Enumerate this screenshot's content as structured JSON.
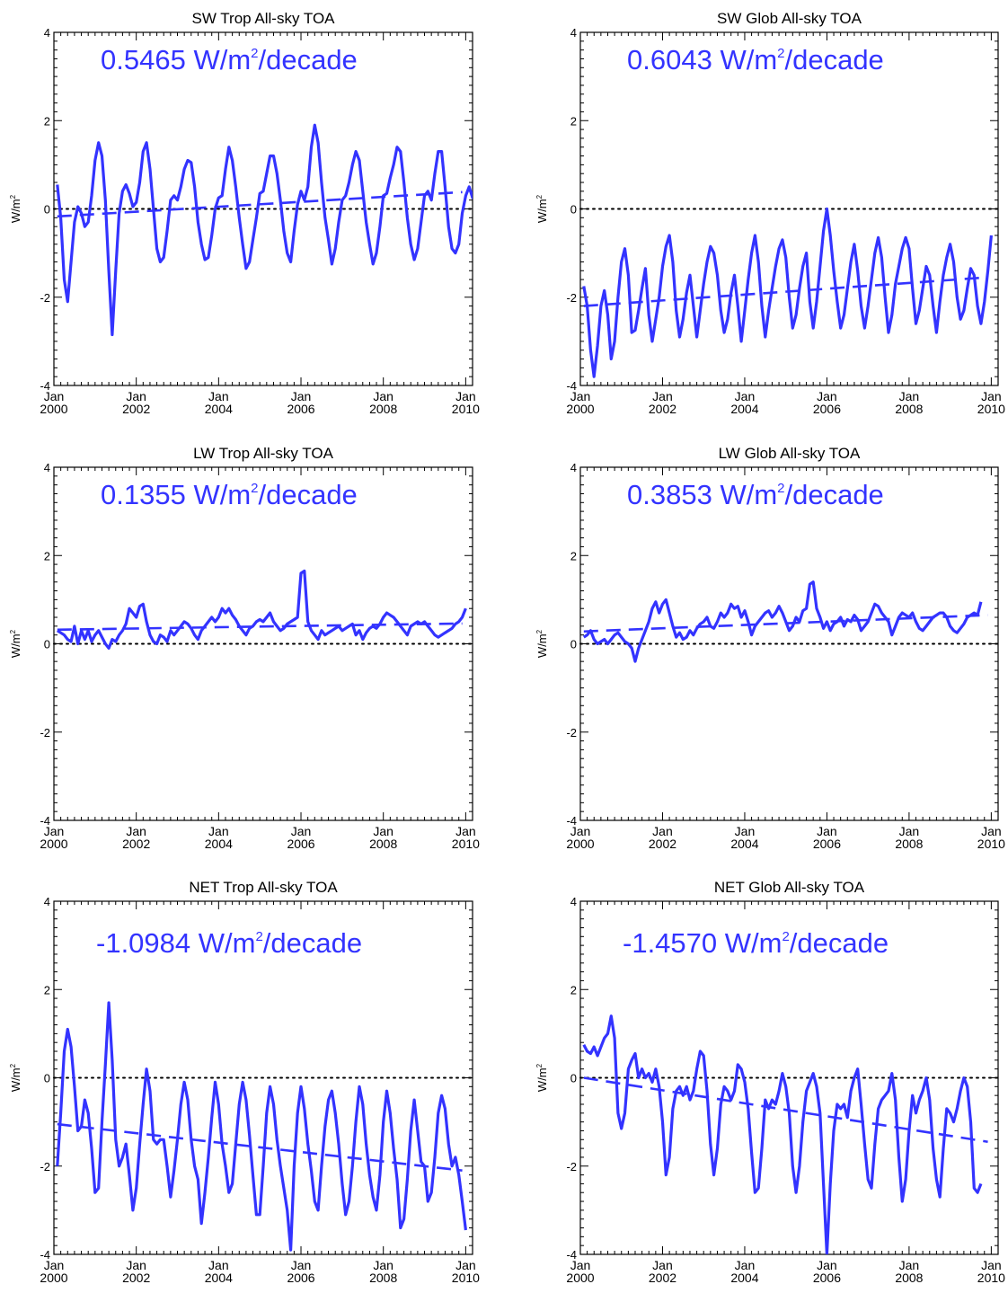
{
  "figure": {
    "line_color": "#3333ff",
    "unit_text": {
      "pre": "W/m",
      "sup": "2"
    },
    "trend_unit": {
      "pre": " W/m",
      "sup": "2",
      "post": "/decade"
    }
  },
  "chart_data": [
    {
      "type": "line",
      "title": "SW Trop All-sky TOA",
      "trend_value": "0.5465",
      "ylabel": "W/m2",
      "x_start": "2000-01",
      "x_step": "1 month",
      "ylim": [
        -4,
        4
      ],
      "yticks": [
        -4,
        -2,
        0,
        2,
        4
      ],
      "xlim": [
        "2000-01",
        "2010-03"
      ],
      "xticks": [
        {
          "line1": "Jan",
          "line2": "2000"
        },
        {
          "line1": "Jan",
          "line2": "2002"
        },
        {
          "line1": "Jan",
          "line2": "2004"
        },
        {
          "line1": "Jan",
          "line2": "2006"
        },
        {
          "line1": "Jan",
          "line2": "2008"
        },
        {
          "line1": "Jan",
          "line2": "2010"
        }
      ],
      "zero_line": "dotted",
      "series": [
        {
          "style": "solid",
          "values": [
            0.55,
            -0.2,
            -1.6,
            -2.1,
            -1.2,
            -0.3,
            0.05,
            -0.1,
            -0.4,
            -0.3,
            0.3,
            1.1,
            1.5,
            1.2,
            0.2,
            -1.4,
            -2.85,
            -1.4,
            -0.1,
            0.4,
            0.55,
            0.35,
            0.05,
            0.15,
            0.6,
            1.3,
            1.5,
            0.9,
            0.0,
            -0.9,
            -1.2,
            -1.1,
            -0.5,
            0.2,
            0.3,
            0.2,
            0.5,
            0.9,
            1.1,
            1.05,
            0.5,
            -0.3,
            -0.8,
            -1.15,
            -1.1,
            -0.6,
            0.0,
            0.25,
            0.3,
            0.9,
            1.4,
            1.1,
            0.5,
            -0.2,
            -0.8,
            -1.35,
            -1.2,
            -0.7,
            -0.2,
            0.35,
            0.4,
            0.8,
            1.2,
            1.2,
            0.8,
            0.2,
            -0.5,
            -1.0,
            -1.2,
            -0.5,
            0.1,
            0.4,
            0.2,
            0.5,
            1.4,
            1.9,
            1.5,
            0.6,
            -0.2,
            -0.7,
            -1.25,
            -0.9,
            -0.3,
            0.2,
            0.3,
            0.6,
            1.0,
            1.3,
            1.1,
            0.4,
            -0.3,
            -0.8,
            -1.25,
            -1.0,
            -0.4,
            0.3,
            0.35,
            0.7,
            1.0,
            1.4,
            1.3,
            0.6,
            -0.2,
            -0.8,
            -1.15,
            -0.9,
            -0.3,
            0.3,
            0.4,
            0.2,
            0.8,
            1.3,
            1.3,
            0.5,
            -0.4,
            -0.9,
            -1.0,
            -0.8,
            -0.1,
            0.3,
            0.5,
            0.25,
            0.7,
            1.35
          ]
        },
        {
          "style": "dashed",
          "values": [
            -0.17,
            0.38
          ]
        }
      ]
    },
    {
      "type": "line",
      "title": "SW Glob All-sky TOA",
      "trend_value": "0.6043",
      "ylabel": "W/m2",
      "x_start": "2000-01",
      "x_step": "1 month",
      "ylim": [
        -4,
        4
      ],
      "yticks": [
        -4,
        -2,
        0,
        2,
        4
      ],
      "xlim": [
        "2000-01",
        "2010-03"
      ],
      "xticks": [
        {
          "line1": "Jan",
          "line2": "2000"
        },
        {
          "line1": "Jan",
          "line2": "2002"
        },
        {
          "line1": "Jan",
          "line2": "2004"
        },
        {
          "line1": "Jan",
          "line2": "2006"
        },
        {
          "line1": "Jan",
          "line2": "2008"
        },
        {
          "line1": "Jan",
          "line2": "2010"
        }
      ],
      "zero_line": "dotted",
      "series": [
        {
          "style": "solid",
          "values": [
            -1.75,
            -2.2,
            -3.2,
            -3.8,
            -3.1,
            -2.2,
            -1.85,
            -2.4,
            -3.4,
            -3.0,
            -2.0,
            -1.2,
            -0.9,
            -1.5,
            -2.8,
            -2.75,
            -2.3,
            -1.8,
            -1.35,
            -2.4,
            -3.0,
            -2.5,
            -2.0,
            -1.3,
            -0.85,
            -0.6,
            -1.2,
            -2.3,
            -2.9,
            -2.5,
            -1.9,
            -1.5,
            -2.2,
            -2.9,
            -2.3,
            -1.7,
            -1.2,
            -0.85,
            -1.0,
            -1.5,
            -2.3,
            -2.8,
            -2.5,
            -1.9,
            -1.5,
            -2.2,
            -3.0,
            -2.3,
            -1.6,
            -1.0,
            -0.6,
            -1.2,
            -2.2,
            -2.9,
            -2.3,
            -1.8,
            -1.3,
            -0.9,
            -0.7,
            -1.1,
            -2.0,
            -2.7,
            -2.4,
            -1.8,
            -1.3,
            -1.0,
            -2.1,
            -2.7,
            -2.1,
            -1.3,
            -0.5,
            0.0,
            -0.6,
            -1.4,
            -2.1,
            -2.7,
            -2.4,
            -1.8,
            -1.2,
            -0.8,
            -1.4,
            -2.2,
            -2.7,
            -2.2,
            -1.6,
            -1.0,
            -0.65,
            -1.1,
            -2.0,
            -2.8,
            -2.4,
            -1.7,
            -1.3,
            -0.9,
            -0.65,
            -0.9,
            -1.8,
            -2.6,
            -2.3,
            -1.8,
            -1.3,
            -1.5,
            -2.2,
            -2.8,
            -2.1,
            -1.5,
            -1.1,
            -0.8,
            -1.2,
            -2.0,
            -2.5,
            -2.3,
            -1.8,
            -1.35,
            -1.5,
            -2.2,
            -2.6,
            -2.1,
            -1.4,
            -0.6
          ]
        },
        {
          "style": "dashed",
          "values": [
            -2.2,
            -1.55
          ]
        }
      ]
    },
    {
      "type": "line",
      "title": "LW Trop All-sky TOA",
      "trend_value": "0.1355",
      "ylabel": "W/m2",
      "x_start": "2000-01",
      "x_step": "1 month",
      "ylim": [
        -4,
        4
      ],
      "yticks": [
        -4,
        -2,
        0,
        2,
        4
      ],
      "xlim": [
        "2000-01",
        "2010-03"
      ],
      "xticks": [
        {
          "line1": "Jan",
          "line2": "2000"
        },
        {
          "line1": "Jan",
          "line2": "2002"
        },
        {
          "line1": "Jan",
          "line2": "2004"
        },
        {
          "line1": "Jan",
          "line2": "2006"
        },
        {
          "line1": "Jan",
          "line2": "2008"
        },
        {
          "line1": "Jan",
          "line2": "2010"
        }
      ],
      "zero_line": "dotted",
      "series": [
        {
          "style": "solid",
          "values": [
            0.3,
            0.25,
            0.2,
            0.1,
            0.05,
            0.4,
            0.0,
            0.3,
            0.1,
            0.3,
            0.05,
            0.2,
            0.3,
            0.15,
            0.0,
            -0.1,
            0.1,
            0.05,
            0.2,
            0.3,
            0.45,
            0.8,
            0.7,
            0.6,
            0.85,
            0.9,
            0.5,
            0.2,
            0.05,
            0.0,
            0.2,
            0.15,
            0.05,
            0.3,
            0.2,
            0.3,
            0.4,
            0.5,
            0.45,
            0.35,
            0.2,
            0.1,
            0.3,
            0.4,
            0.5,
            0.6,
            0.5,
            0.6,
            0.8,
            0.7,
            0.8,
            0.65,
            0.55,
            0.4,
            0.3,
            0.2,
            0.35,
            0.4,
            0.5,
            0.55,
            0.5,
            0.6,
            0.7,
            0.5,
            0.4,
            0.3,
            0.35,
            0.45,
            0.5,
            0.55,
            0.6,
            1.6,
            1.65,
            0.5,
            0.3,
            0.2,
            0.1,
            0.3,
            0.2,
            0.25,
            0.3,
            0.35,
            0.4,
            0.3,
            0.35,
            0.4,
            0.45,
            0.2,
            0.3,
            0.1,
            0.25,
            0.35,
            0.4,
            0.35,
            0.45,
            0.6,
            0.7,
            0.65,
            0.6,
            0.5,
            0.4,
            0.3,
            0.2,
            0.4,
            0.45,
            0.5,
            0.45,
            0.5,
            0.4,
            0.3,
            0.2,
            0.15,
            0.2,
            0.25,
            0.3,
            0.35,
            0.45,
            0.5,
            0.6,
            0.8
          ]
        },
        {
          "style": "dashed",
          "values": [
            0.32,
            0.46
          ]
        }
      ]
    },
    {
      "type": "line",
      "title": "LW Glob All-sky TOA",
      "trend_value": "0.3853",
      "ylabel": "W/m2",
      "x_start": "2000-01",
      "x_step": "1 month",
      "ylim": [
        -4,
        4
      ],
      "yticks": [
        -4,
        -2,
        0,
        2,
        4
      ],
      "xlim": [
        "2000-01",
        "2010-03"
      ],
      "xticks": [
        {
          "line1": "Jan",
          "line2": "2000"
        },
        {
          "line1": "Jan",
          "line2": "2002"
        },
        {
          "line1": "Jan",
          "line2": "2004"
        },
        {
          "line1": "Jan",
          "line2": "2006"
        },
        {
          "line1": "Jan",
          "line2": "2008"
        },
        {
          "line1": "Jan",
          "line2": "2010"
        }
      ],
      "zero_line": "dotted",
      "series": [
        {
          "style": "solid",
          "values": [
            0.15,
            0.2,
            0.3,
            0.1,
            0.0,
            0.05,
            0.1,
            0.0,
            0.1,
            0.2,
            0.25,
            0.15,
            0.05,
            0.0,
            -0.1,
            -0.4,
            -0.1,
            0.1,
            0.3,
            0.5,
            0.8,
            0.95,
            0.7,
            0.9,
            1.0,
            0.7,
            0.4,
            0.15,
            0.25,
            0.1,
            0.15,
            0.3,
            0.2,
            0.35,
            0.45,
            0.5,
            0.6,
            0.4,
            0.35,
            0.5,
            0.7,
            0.6,
            0.7,
            0.9,
            0.8,
            0.85,
            0.6,
            0.75,
            0.5,
            0.2,
            0.4,
            0.5,
            0.6,
            0.7,
            0.75,
            0.6,
            0.7,
            0.85,
            0.7,
            0.5,
            0.3,
            0.4,
            0.6,
            0.5,
            0.75,
            0.8,
            1.35,
            1.4,
            0.8,
            0.6,
            0.35,
            0.5,
            0.3,
            0.45,
            0.5,
            0.6,
            0.4,
            0.55,
            0.5,
            0.65,
            0.55,
            0.3,
            0.4,
            0.5,
            0.7,
            0.9,
            0.85,
            0.7,
            0.6,
            0.5,
            0.2,
            0.4,
            0.6,
            0.7,
            0.65,
            0.6,
            0.7,
            0.5,
            0.35,
            0.3,
            0.4,
            0.5,
            0.6,
            0.65,
            0.7,
            0.7,
            0.6,
            0.4,
            0.3,
            0.25,
            0.35,
            0.45,
            0.6,
            0.65,
            0.7,
            0.65,
            0.95
          ]
        },
        {
          "style": "dashed",
          "values": [
            0.28,
            0.65
          ]
        }
      ]
    },
    {
      "type": "line",
      "title": "NET Trop All-sky TOA",
      "trend_value": "-1.0984",
      "ylabel": "W/m2",
      "x_start": "2000-01",
      "x_step": "1 month",
      "ylim": [
        -4,
        4
      ],
      "yticks": [
        -4,
        -2,
        0,
        2,
        4
      ],
      "xlim": [
        "2000-01",
        "2010-03"
      ],
      "xticks": [
        {
          "line1": "Jan",
          "line2": "2000"
        },
        {
          "line1": "Jan",
          "line2": "2002"
        },
        {
          "line1": "Jan",
          "line2": "2004"
        },
        {
          "line1": "Jan",
          "line2": "2006"
        },
        {
          "line1": "Jan",
          "line2": "2008"
        },
        {
          "line1": "Jan",
          "line2": "2010"
        }
      ],
      "zero_line": "dotted",
      "series": [
        {
          "style": "solid",
          "values": [
            -2.0,
            -0.8,
            0.6,
            1.1,
            0.7,
            -0.2,
            -1.2,
            -1.1,
            -0.5,
            -0.8,
            -1.6,
            -2.6,
            -2.5,
            -1.0,
            0.3,
            1.7,
            0.4,
            -1.4,
            -2.0,
            -1.8,
            -1.5,
            -2.2,
            -3.0,
            -2.5,
            -1.5,
            -0.6,
            0.2,
            -0.3,
            -1.4,
            -1.5,
            -1.4,
            -1.4,
            -2.0,
            -2.7,
            -2.1,
            -1.4,
            -0.6,
            -0.1,
            -0.5,
            -1.4,
            -2.0,
            -2.3,
            -3.3,
            -2.6,
            -1.8,
            -0.9,
            -0.1,
            -0.6,
            -1.5,
            -2.0,
            -2.6,
            -2.4,
            -1.5,
            -0.6,
            -0.1,
            -0.5,
            -1.3,
            -2.2,
            -3.1,
            -3.1,
            -2.0,
            -0.8,
            -0.2,
            -0.6,
            -1.4,
            -2.0,
            -2.5,
            -3.0,
            -3.9,
            -2.0,
            -0.8,
            -0.2,
            -0.7,
            -1.5,
            -2.1,
            -2.8,
            -3.0,
            -2.0,
            -1.1,
            -0.5,
            -0.3,
            -0.8,
            -1.5,
            -2.4,
            -3.1,
            -2.8,
            -2.0,
            -1.0,
            -0.2,
            -0.6,
            -1.5,
            -2.2,
            -2.7,
            -3.0,
            -2.2,
            -1.0,
            -0.3,
            -0.8,
            -1.6,
            -2.3,
            -3.4,
            -3.2,
            -2.3,
            -1.2,
            -0.5,
            -1.2,
            -1.9,
            -2.0,
            -2.8,
            -2.6,
            -1.8,
            -0.8,
            -0.4,
            -0.7,
            -1.5,
            -2.0,
            -1.8,
            -2.2,
            -2.8,
            -3.45
          ]
        },
        {
          "style": "dashed",
          "values": [
            -1.05,
            -2.1
          ]
        }
      ]
    },
    {
      "type": "line",
      "title": "NET Glob All-sky TOA",
      "trend_value": "-1.4570",
      "ylabel": "W/m2",
      "x_start": "2000-01",
      "x_step": "1 month",
      "ylim": [
        -4,
        4
      ],
      "yticks": [
        -4,
        -2,
        0,
        2,
        4
      ],
      "xlim": [
        "2000-01",
        "2010-03"
      ],
      "xticks": [
        {
          "line1": "Jan",
          "line2": "2000"
        },
        {
          "line1": "Jan",
          "line2": "2002"
        },
        {
          "line1": "Jan",
          "line2": "2004"
        },
        {
          "line1": "Jan",
          "line2": "2006"
        },
        {
          "line1": "Jan",
          "line2": "2008"
        },
        {
          "line1": "Jan",
          "line2": "2010"
        }
      ],
      "zero_line": "dotted",
      "series": [
        {
          "style": "solid",
          "values": [
            0.75,
            0.6,
            0.55,
            0.7,
            0.5,
            0.7,
            0.9,
            1.0,
            1.4,
            0.9,
            -0.8,
            -1.15,
            -0.8,
            0.2,
            0.4,
            0.55,
            0.0,
            0.2,
            0.0,
            0.1,
            -0.1,
            0.2,
            -0.2,
            -1.0,
            -2.2,
            -1.8,
            -0.7,
            -0.3,
            -0.2,
            -0.4,
            -0.2,
            -0.5,
            -0.3,
            0.2,
            0.6,
            0.5,
            -0.3,
            -1.5,
            -2.2,
            -1.6,
            -0.6,
            -0.2,
            -0.3,
            -0.5,
            -0.3,
            0.3,
            0.2,
            -0.1,
            -0.7,
            -1.7,
            -2.6,
            -2.5,
            -1.6,
            -0.5,
            -0.7,
            -0.5,
            -0.6,
            -0.3,
            0.1,
            -0.2,
            -0.8,
            -2.0,
            -2.6,
            -2.0,
            -1.0,
            -0.3,
            -0.1,
            0.1,
            -0.2,
            -0.8,
            -2.4,
            -4.0,
            -2.4,
            -1.2,
            -0.6,
            -0.7,
            -0.6,
            -0.9,
            -0.3,
            0.0,
            0.2,
            -0.6,
            -1.5,
            -2.3,
            -2.5,
            -1.5,
            -0.7,
            -0.5,
            -0.4,
            -0.3,
            0.1,
            -0.5,
            -1.8,
            -2.8,
            -2.3,
            -1.2,
            -0.4,
            -0.8,
            -0.5,
            -0.3,
            0.0,
            -0.5,
            -1.6,
            -2.3,
            -2.7,
            -1.6,
            -0.7,
            -0.8,
            -1.0,
            -0.7,
            -0.3,
            0.0,
            -0.2,
            -1.0,
            -2.5,
            -2.6,
            -2.4
          ]
        },
        {
          "style": "dashed",
          "values": [
            0.0,
            -1.45
          ]
        }
      ]
    }
  ]
}
